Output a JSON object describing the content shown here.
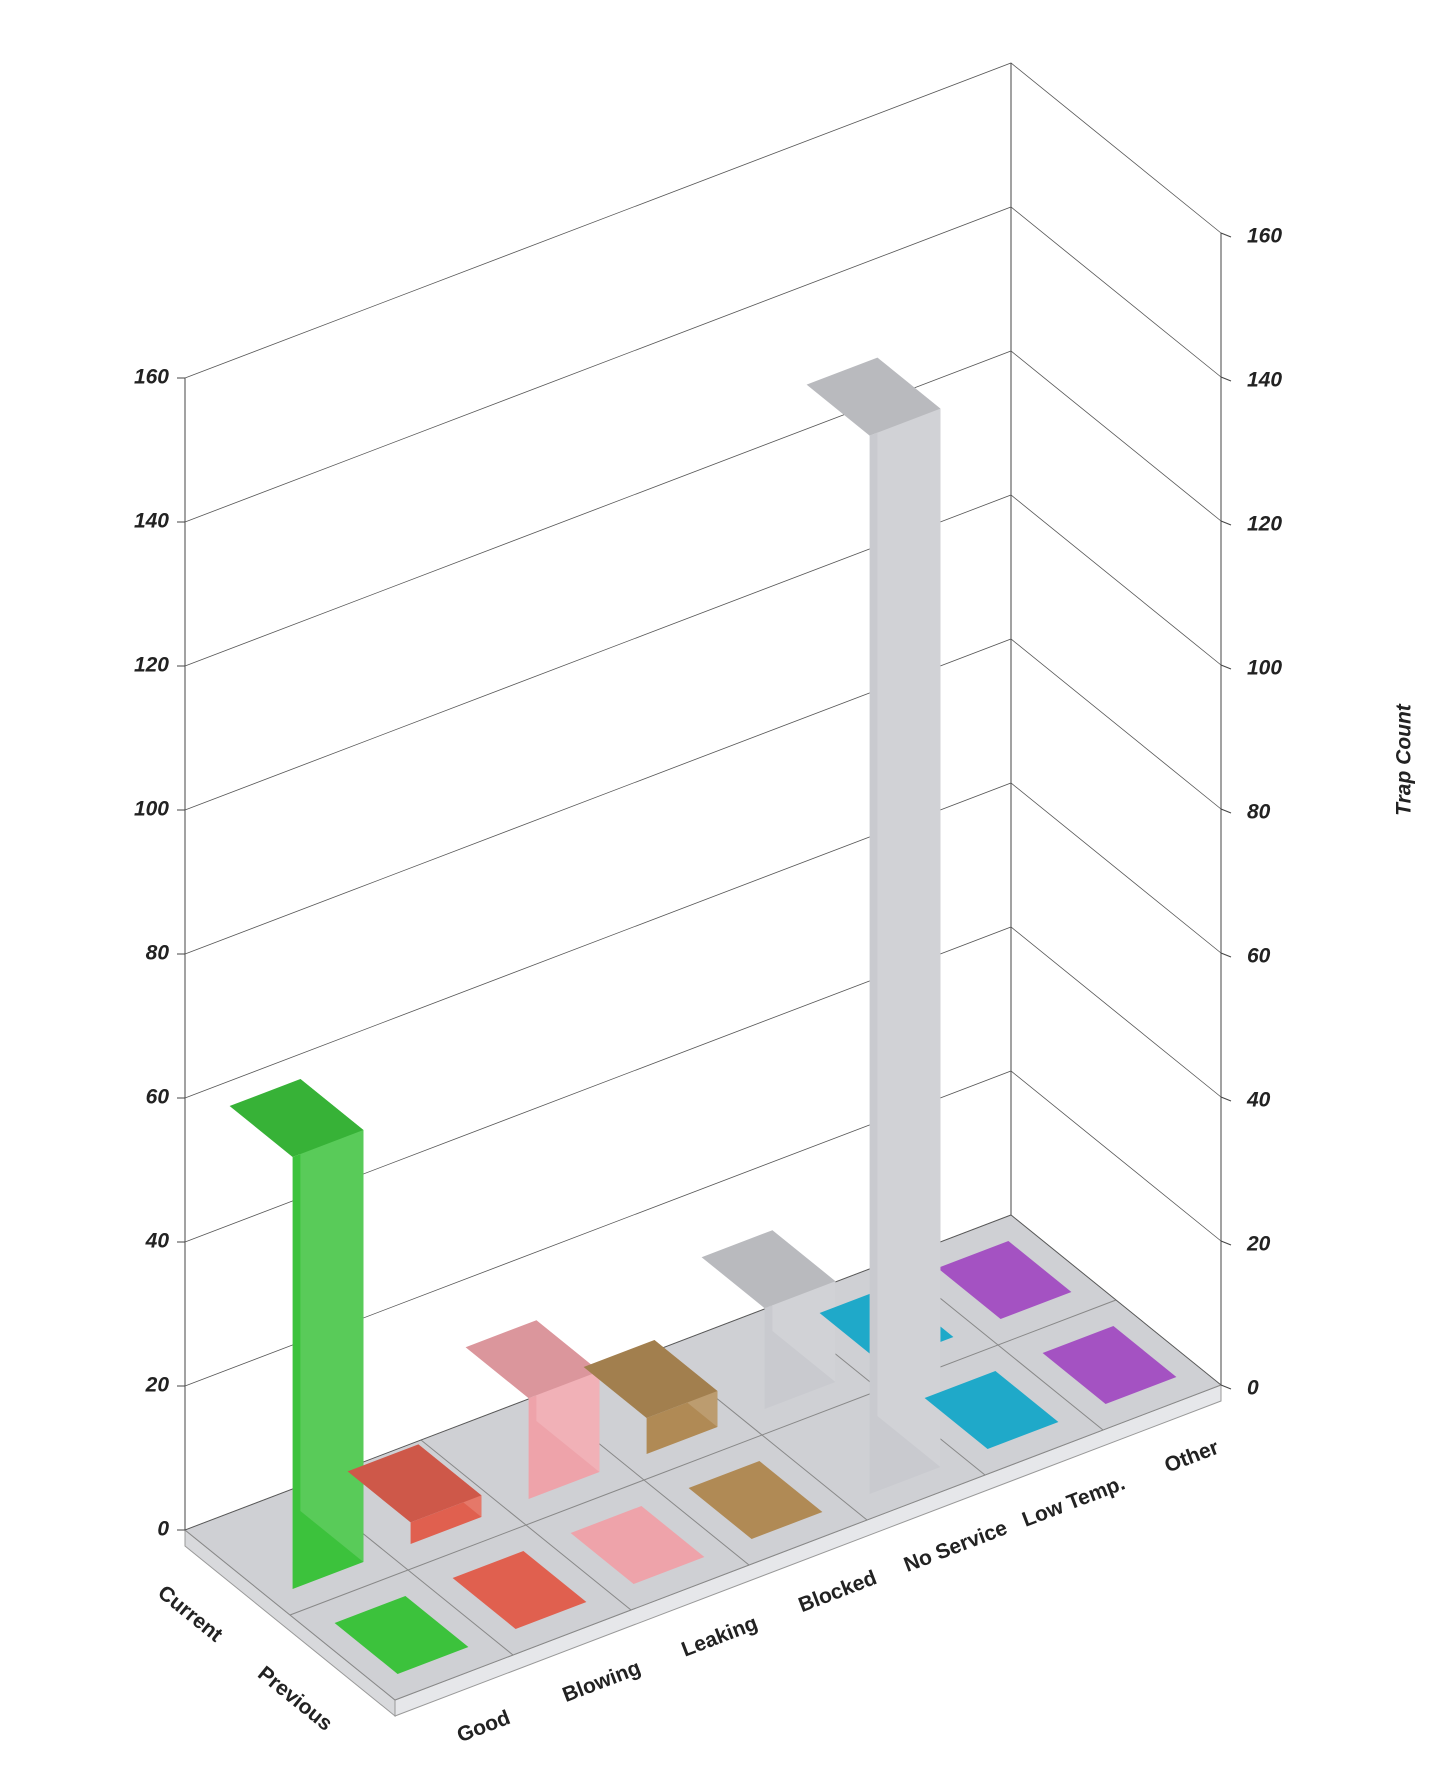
{
  "chart_data": {
    "type": "bar3d",
    "categories": [
      "Good",
      "Blowing",
      "Leaking",
      "Blocked",
      "No Service",
      "Low Temp.",
      "Other"
    ],
    "colors": [
      "#3cc23c",
      "#e0604f",
      "#eea3aa",
      "#b08a55",
      "#c9cacf",
      "#1fa9c9",
      "#a452c2"
    ],
    "series": [
      {
        "name": "Current",
        "values": [
          60,
          3,
          14,
          5,
          14,
          0,
          0
        ]
      },
      {
        "name": "Previous",
        "values": [
          0,
          0,
          0,
          0,
          147,
          0,
          0
        ]
      }
    ],
    "ylim": [
      0,
      160
    ],
    "yticks": [
      0,
      20,
      40,
      60,
      80,
      100,
      120,
      140,
      160
    ],
    "y_label": "Trap Count",
    "grid": true
  }
}
